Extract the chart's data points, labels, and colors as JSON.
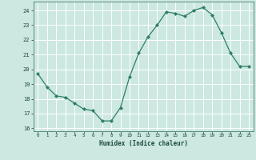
{
  "x": [
    0,
    1,
    2,
    3,
    4,
    5,
    6,
    7,
    8,
    9,
    10,
    11,
    12,
    13,
    14,
    15,
    16,
    17,
    18,
    19,
    20,
    21,
    22,
    23
  ],
  "y": [
    19.7,
    18.8,
    18.2,
    18.1,
    17.7,
    17.3,
    17.2,
    16.5,
    16.5,
    17.4,
    19.5,
    21.1,
    22.2,
    23.0,
    23.9,
    23.8,
    23.6,
    24.0,
    24.2,
    23.7,
    22.5,
    21.1,
    20.2,
    20.2
  ],
  "xlabel": "Humidex (Indice chaleur)",
  "ylabel": "",
  "xlim": [
    -0.5,
    23.5
  ],
  "ylim": [
    15.8,
    24.6
  ],
  "yticks": [
    16,
    17,
    18,
    19,
    20,
    21,
    22,
    23,
    24
  ],
  "xticks": [
    0,
    1,
    2,
    3,
    4,
    5,
    6,
    7,
    8,
    9,
    10,
    11,
    12,
    13,
    14,
    15,
    16,
    17,
    18,
    19,
    20,
    21,
    22,
    23
  ],
  "line_color": "#2e7d6b",
  "marker_color": "#2e7d6b",
  "bg_color": "#cce8e0",
  "grid_color": "#ffffff",
  "axes_color": "#5a8a80",
  "label_color": "#1a4a40",
  "tick_color": "#1a4a40"
}
